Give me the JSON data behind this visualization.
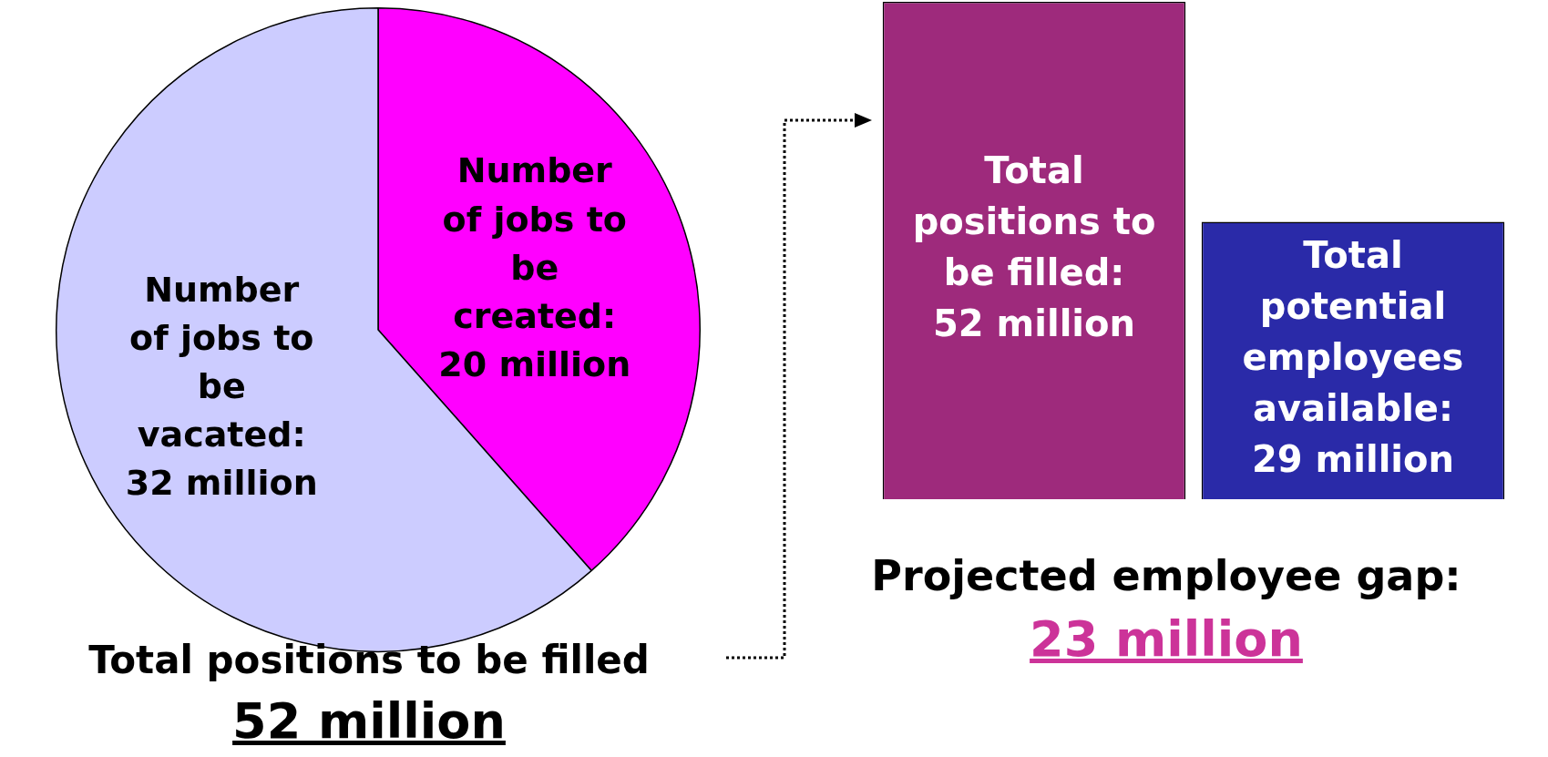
{
  "chart_data": [
    {
      "type": "pie",
      "categories": [
        null,
        null
      ],
      "values": [
        20,
        32
      ],
      "value_labels": [
        "Number of jobs to be created: 20 million",
        "Number of jobs to be vacated: 32 million"
      ],
      "colors": [
        "#ff00ff",
        "#ccccff"
      ],
      "legend": false,
      "annotations": [
        "Total positions to be filled",
        "52 million"
      ]
    },
    {
      "type": "bar",
      "categories": [
        null,
        null
      ],
      "values": [
        52,
        29
      ],
      "value_labels": [
        "Total positions to be filled: 52 million",
        "Total potential employees available: 29 million"
      ],
      "colors": [
        "#9e2a7c",
        "#2a2aa8"
      ],
      "legend": false,
      "annotations": [
        "Projected employee gap:",
        "23 million"
      ]
    }
  ]
}
